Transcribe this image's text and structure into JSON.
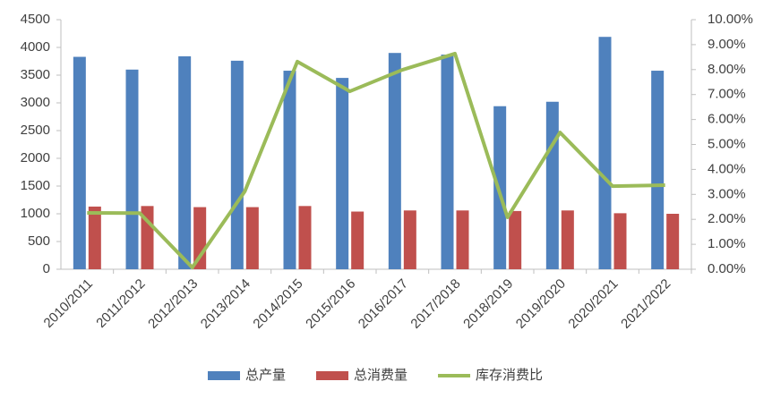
{
  "chart_data": {
    "type": "bar-line",
    "categories": [
      "2010/2011",
      "2011/2012",
      "2012/2013",
      "2013/2014",
      "2014/2015",
      "2015/2016",
      "2016/2017",
      "2017/2018",
      "2018/2019",
      "2019/2020",
      "2020/2021",
      "2021/2022"
    ],
    "series": [
      {
        "name": "总产量",
        "color": "#4f81bd",
        "values": [
          3830,
          3600,
          3840,
          3760,
          3580,
          3450,
          3900,
          3870,
          2940,
          3020,
          4190,
          3580
        ]
      },
      {
        "name": "总消费量",
        "color": "#c0504d",
        "values": [
          1130,
          1140,
          1120,
          1120,
          1140,
          1040,
          1060,
          1060,
          1050,
          1060,
          1010,
          1000
        ]
      },
      {
        "name": "库存消费比",
        "color": "#9bbb59",
        "axis": "y2",
        "values": [
          2.26,
          2.25,
          0.07,
          3.12,
          8.32,
          7.13,
          7.99,
          8.64,
          2.08,
          5.48,
          3.33,
          3.37
        ]
      }
    ],
    "ylim": [
      0,
      4500
    ],
    "yticks": [
      0,
      500,
      1000,
      1500,
      2000,
      2500,
      3000,
      3500,
      4000,
      4500
    ],
    "y2lim": [
      0,
      10
    ],
    "y2ticks": [
      {
        "value": 0,
        "label": "0.00%"
      },
      {
        "value": 1,
        "label": "1.00%"
      },
      {
        "value": 2,
        "label": "2.00%"
      },
      {
        "value": 3,
        "label": "3.00%"
      },
      {
        "value": 4,
        "label": "4.00%"
      },
      {
        "value": 5,
        "label": "5.00%"
      },
      {
        "value": 6,
        "label": "6.00%"
      },
      {
        "value": 7,
        "label": "7.00%"
      },
      {
        "value": 8,
        "label": "8.00%"
      },
      {
        "value": 9,
        "label": "9.00%"
      },
      {
        "value": 10,
        "label": "10.00%"
      }
    ],
    "legend": "bottom",
    "grid": false
  }
}
